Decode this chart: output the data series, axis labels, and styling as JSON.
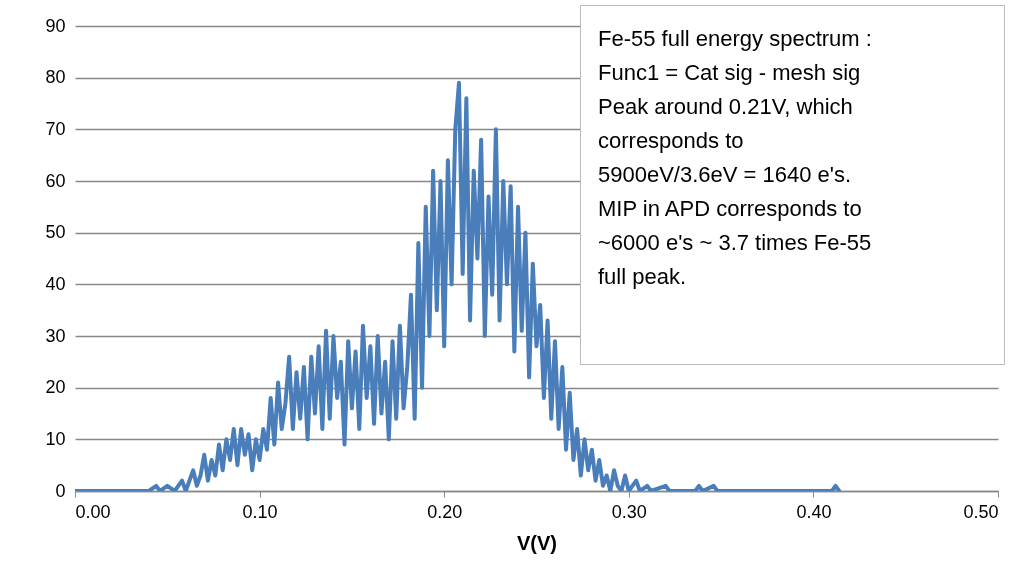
{
  "chart_data": {
    "type": "line",
    "xlabel": "V(V)",
    "annotations": [
      "Fe-55 full energy spectrum :",
      "Func1 = Cat sig - mesh sig",
      "Peak around 0.21V, which",
      "corresponds to",
      "5900eV/3.6eV = 1640 e's.",
      "MIP in APD corresponds to",
      "~6000 e's ~ 3.7 times Fe-55",
      "full peak."
    ],
    "xlim": [
      0,
      0.5
    ],
    "xticks": [
      {
        "value": 0,
        "label": "0.00"
      },
      {
        "value": 0.1,
        "label": "0.10"
      },
      {
        "value": 0.2,
        "label": "0.20"
      },
      {
        "value": 0.3,
        "label": "0.30"
      },
      {
        "value": 0.4,
        "label": "0.40"
      },
      {
        "value": 0.5,
        "label": "0.50"
      }
    ],
    "ylim": [
      0,
      90
    ],
    "yticks": [
      0,
      10,
      20,
      30,
      40,
      50,
      60,
      70,
      80,
      90
    ],
    "grid": "y",
    "legend": false,
    "series": [
      {
        "color": "#4a7ebb",
        "x": [
          0,
          0.04,
          0.044,
          0.046,
          0.05,
          0.054,
          0.058,
          0.06,
          0.064,
          0.066,
          0.068,
          0.07,
          0.072,
          0.074,
          0.076,
          0.078,
          0.08,
          0.082,
          0.084,
          0.086,
          0.088,
          0.09,
          0.092,
          0.094,
          0.096,
          0.098,
          0.1,
          0.102,
          0.104,
          0.106,
          0.108,
          0.11,
          0.112,
          0.114,
          0.116,
          0.118,
          0.12,
          0.122,
          0.124,
          0.126,
          0.128,
          0.13,
          0.132,
          0.134,
          0.136,
          0.138,
          0.14,
          0.142,
          0.144,
          0.146,
          0.148,
          0.15,
          0.152,
          0.154,
          0.156,
          0.158,
          0.16,
          0.162,
          0.164,
          0.166,
          0.168,
          0.17,
          0.172,
          0.174,
          0.176,
          0.178,
          0.18,
          0.182,
          0.184,
          0.186,
          0.188,
          0.19,
          0.192,
          0.194,
          0.196,
          0.198,
          0.2,
          0.202,
          0.204,
          0.206,
          0.208,
          0.21,
          0.212,
          0.214,
          0.216,
          0.218,
          0.22,
          0.222,
          0.224,
          0.226,
          0.228,
          0.23,
          0.232,
          0.234,
          0.236,
          0.238,
          0.24,
          0.242,
          0.244,
          0.246,
          0.248,
          0.25,
          0.252,
          0.254,
          0.256,
          0.258,
          0.26,
          0.262,
          0.264,
          0.266,
          0.268,
          0.27,
          0.272,
          0.274,
          0.276,
          0.278,
          0.28,
          0.282,
          0.284,
          0.286,
          0.288,
          0.29,
          0.292,
          0.294,
          0.296,
          0.298,
          0.3,
          0.304,
          0.306,
          0.31,
          0.312,
          0.32,
          0.322,
          0.336,
          0.338,
          0.34,
          0.346,
          0.348,
          0.41,
          0.412,
          0.414
        ],
        "values": [
          0,
          0,
          1,
          0,
          1,
          0,
          2,
          0,
          4,
          1,
          3,
          7,
          2,
          6,
          3,
          9,
          4,
          10,
          6,
          12,
          5,
          12,
          7,
          11,
          4,
          10,
          6,
          12,
          8,
          18,
          9,
          21,
          12,
          17,
          26,
          12,
          23,
          14,
          24,
          10,
          26,
          15,
          28,
          12,
          31,
          14,
          30,
          18,
          25,
          9,
          29,
          16,
          27,
          12,
          32,
          18,
          28,
          13,
          30,
          15,
          25,
          10,
          29,
          14,
          32,
          16,
          24,
          38,
          14,
          48,
          20,
          55,
          30,
          62,
          35,
          60,
          28,
          64,
          40,
          70,
          79,
          42,
          76,
          33,
          62,
          45,
          68,
          30,
          57,
          38,
          70,
          33,
          60,
          40,
          59,
          27,
          55,
          31,
          50,
          22,
          44,
          28,
          36,
          18,
          33,
          14,
          29,
          12,
          24,
          8,
          19,
          6,
          12,
          3,
          10,
          4,
          8,
          2,
          6,
          1,
          3,
          0,
          4,
          1,
          0,
          3,
          0,
          2,
          0,
          1,
          0,
          1,
          0,
          0,
          1,
          0,
          1,
          0,
          0,
          1,
          0
        ]
      }
    ]
  }
}
